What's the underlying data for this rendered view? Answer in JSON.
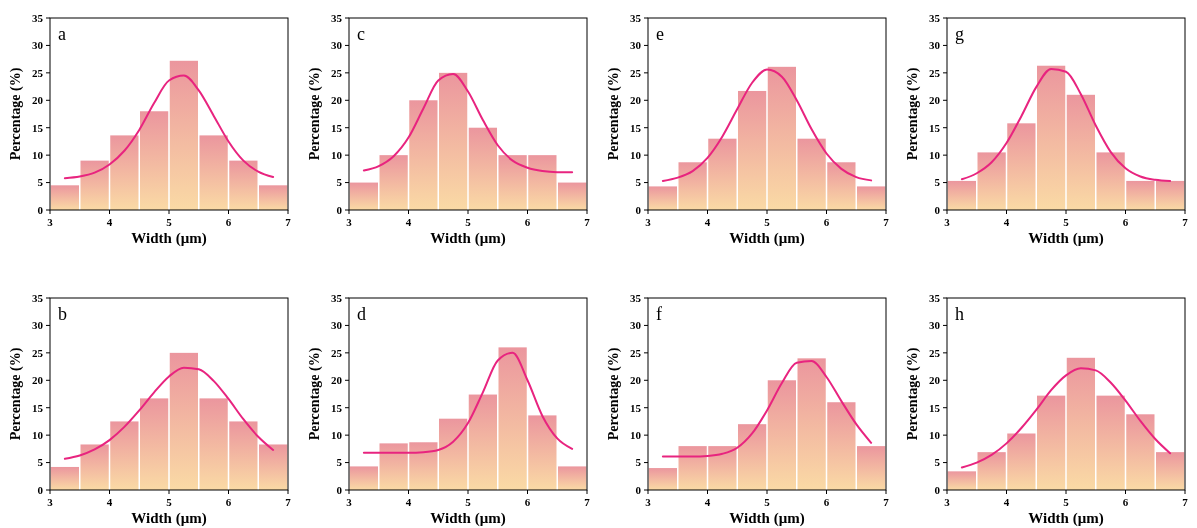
{
  "chart_data": [
    {
      "type": "histogram",
      "title": "a",
      "xlabel": "Width (μm)",
      "ylabel": "Percentage (%)",
      "bins": [
        3,
        3.5,
        4,
        4.5,
        5,
        5.5,
        6,
        6.5,
        7
      ],
      "values": [
        4.5,
        9,
        13.6,
        18,
        27.2,
        13.6,
        9,
        4.5
      ],
      "color": "#eb969e",
      "xlim": [
        3,
        7
      ],
      "xticks": [
        3,
        4,
        5,
        6,
        7
      ],
      "ylim": [
        0,
        35
      ],
      "yticks": [
        0,
        5,
        10,
        15,
        20,
        25,
        30,
        35
      ],
      "series": [
        {
          "type": "line",
          "color": "#e8247f",
          "x": [
            3.25,
            3.5,
            3.75,
            4,
            4.25,
            4.5,
            4.75,
            5,
            5.25,
            5.5,
            5.75,
            6,
            6.25,
            6.5,
            6.75
          ],
          "values": [
            5.8,
            6.1,
            6.8,
            8.3,
            10.8,
            14.6,
            19.5,
            23.6,
            24.5,
            21.8,
            17.2,
            12.5,
            9,
            7,
            6
          ]
        }
      ]
    },
    {
      "type": "histogram",
      "title": "c",
      "xlabel": "Width (μm)",
      "ylabel": "Percentage (%)",
      "bins": [
        3,
        3.5,
        4,
        4.5,
        5,
        5.5,
        6,
        6.5,
        7
      ],
      "values": [
        5,
        10,
        20,
        25,
        15,
        10,
        10,
        5
      ],
      "color": "#eb969e",
      "xlim": [
        3,
        7
      ],
      "xticks": [
        3,
        4,
        5,
        6,
        7
      ],
      "ylim": [
        0,
        35
      ],
      "yticks": [
        0,
        5,
        10,
        15,
        20,
        25,
        30,
        35
      ],
      "series": [
        {
          "type": "line",
          "color": "#e8247f",
          "x": [
            3.25,
            3.5,
            3.75,
            4,
            4.25,
            4.5,
            4.75,
            5,
            5.25,
            5.5,
            5.75,
            6,
            6.25,
            6.5,
            6.75
          ],
          "values": [
            7.2,
            8,
            9.8,
            13.2,
            18.5,
            23.6,
            24.8,
            21.6,
            16.4,
            11.8,
            9,
            7.7,
            7.1,
            6.9,
            6.9
          ]
        }
      ]
    },
    {
      "type": "histogram",
      "title": "e",
      "xlabel": "Width (μm)",
      "ylabel": "Percentage (%)",
      "bins": [
        3,
        3.5,
        4,
        4.5,
        5,
        5.5,
        6,
        6.5,
        7
      ],
      "values": [
        4.3,
        8.7,
        13,
        21.7,
        26.1,
        13,
        8.7,
        4.3
      ],
      "color": "#eb969e",
      "xlim": [
        3,
        7
      ],
      "xticks": [
        3,
        4,
        5,
        6,
        7
      ],
      "ylim": [
        0,
        35
      ],
      "yticks": [
        0,
        5,
        10,
        15,
        20,
        25,
        30,
        35
      ],
      "series": [
        {
          "type": "line",
          "color": "#e8247f",
          "x": [
            3.25,
            3.5,
            3.75,
            4,
            4.25,
            4.5,
            4.75,
            5,
            5.25,
            5.5,
            5.75,
            6,
            6.25,
            6.5,
            6.75
          ],
          "values": [
            5.3,
            5.9,
            7.1,
            9.5,
            13.4,
            18.4,
            23.2,
            25.6,
            24.3,
            20,
            14.7,
            10.3,
            7.5,
            6,
            5.4
          ]
        }
      ]
    },
    {
      "type": "histogram",
      "title": "g",
      "xlabel": "Width (μm)",
      "ylabel": "Percentage (%)",
      "bins": [
        3,
        3.5,
        4,
        4.5,
        5,
        5.5,
        6,
        6.5,
        7
      ],
      "values": [
        5.3,
        10.5,
        15.8,
        26.3,
        21,
        10.5,
        5.3,
        5.3
      ],
      "color": "#eb969e",
      "xlim": [
        3,
        7
      ],
      "xticks": [
        3,
        4,
        5,
        6,
        7
      ],
      "ylim": [
        0,
        35
      ],
      "yticks": [
        0,
        5,
        10,
        15,
        20,
        25,
        30,
        35
      ],
      "series": [
        {
          "type": "line",
          "color": "#e8247f",
          "x": [
            3.25,
            3.5,
            3.75,
            4,
            4.25,
            4.5,
            4.75,
            5,
            5.25,
            5.5,
            5.75,
            6,
            6.25,
            6.5,
            6.75
          ],
          "values": [
            5.6,
            6.7,
            8.7,
            12.2,
            17.1,
            22.4,
            25.7,
            25.2,
            21.1,
            15.4,
            10.6,
            7.6,
            6.1,
            5.5,
            5.3
          ]
        }
      ]
    },
    {
      "type": "histogram",
      "title": "b",
      "xlabel": "Width (μm)",
      "ylabel": "Percentage (%)",
      "bins": [
        3,
        3.5,
        4,
        4.5,
        5,
        5.5,
        6,
        6.5,
        7
      ],
      "values": [
        4.2,
        8.3,
        12.5,
        16.7,
        25,
        16.7,
        12.5,
        8.3
      ],
      "color": "#eb969e",
      "xlim": [
        3,
        7
      ],
      "xticks": [
        3,
        4,
        5,
        6,
        7
      ],
      "ylim": [
        0,
        35
      ],
      "yticks": [
        0,
        5,
        10,
        15,
        20,
        25,
        30,
        35
      ],
      "series": [
        {
          "type": "line",
          "color": "#e8247f",
          "x": [
            3.25,
            3.5,
            3.75,
            4,
            4.25,
            4.5,
            4.75,
            5,
            5.25,
            5.5,
            5.75,
            6,
            6.25,
            6.5,
            6.75
          ],
          "values": [
            5.7,
            6.3,
            7.4,
            9.1,
            11.5,
            14.5,
            17.8,
            20.7,
            22.3,
            22,
            19.9,
            16.6,
            12.9,
            9.7,
            7.3
          ]
        }
      ]
    },
    {
      "type": "histogram",
      "title": "d",
      "xlabel": "Width (μm)",
      "ylabel": "Percentage (%)",
      "bins": [
        3,
        3.5,
        4,
        4.5,
        5,
        5.5,
        6,
        6.5,
        7
      ],
      "values": [
        4.3,
        8.5,
        8.7,
        13,
        17.4,
        26,
        13.6,
        4.3
      ],
      "color": "#eb969e",
      "xlim": [
        3,
        7
      ],
      "xticks": [
        3,
        4,
        5,
        6,
        7
      ],
      "ylim": [
        0,
        35
      ],
      "yticks": [
        0,
        5,
        10,
        15,
        20,
        25,
        30,
        35
      ],
      "series": [
        {
          "type": "line",
          "color": "#e8247f",
          "x": [
            3.25,
            3.5,
            3.75,
            4,
            4.25,
            4.5,
            4.75,
            5,
            5.25,
            5.5,
            5.75,
            6,
            6.25,
            6.5,
            6.75
          ],
          "values": [
            6.8,
            6.8,
            6.8,
            6.8,
            6.9,
            7.3,
            8.8,
            12.2,
            17.8,
            23.6,
            25,
            20,
            13.5,
            9.4,
            7.5
          ]
        }
      ]
    },
    {
      "type": "histogram",
      "title": "f",
      "xlabel": "Width (μm)",
      "ylabel": "Percentage (%)",
      "bins": [
        3,
        3.5,
        4,
        4.5,
        5,
        5.5,
        6,
        6.5,
        7
      ],
      "values": [
        4,
        8,
        8,
        12,
        20,
        24,
        16,
        8
      ],
      "color": "#eb969e",
      "xlim": [
        3,
        7
      ],
      "xticks": [
        3,
        4,
        5,
        6,
        7
      ],
      "ylim": [
        0,
        35
      ],
      "yticks": [
        0,
        5,
        10,
        15,
        20,
        25,
        30,
        35
      ],
      "series": [
        {
          "type": "line",
          "color": "#e8247f",
          "x": [
            3.25,
            3.5,
            3.75,
            4,
            4.25,
            4.5,
            4.75,
            5,
            5.25,
            5.5,
            5.75,
            6,
            6.25,
            6.5,
            6.75
          ],
          "values": [
            6.1,
            6.1,
            6.1,
            6.2,
            6.6,
            7.7,
            10.3,
            14.5,
            19.5,
            23.2,
            23.5,
            20.6,
            16.2,
            12,
            8.6
          ]
        }
      ]
    },
    {
      "type": "histogram",
      "title": "h",
      "xlabel": "Width (μm)",
      "ylabel": "Percentage (%)",
      "bins": [
        3,
        3.5,
        4,
        4.5,
        5,
        5.5,
        6,
        6.5,
        7
      ],
      "values": [
        3.4,
        6.9,
        10.3,
        17.2,
        24.1,
        17.2,
        13.8,
        6.9
      ],
      "color": "#eb969e",
      "xlim": [
        3,
        7
      ],
      "xticks": [
        3,
        4,
        5,
        6,
        7
      ],
      "ylim": [
        0,
        35
      ],
      "yticks": [
        0,
        5,
        10,
        15,
        20,
        25,
        30,
        35
      ],
      "series": [
        {
          "type": "line",
          "color": "#e8247f",
          "x": [
            3.25,
            3.5,
            3.75,
            4,
            4.25,
            4.5,
            4.75,
            5,
            5.25,
            5.5,
            5.75,
            6,
            6.25,
            6.5,
            6.75
          ],
          "values": [
            4.1,
            5,
            6.4,
            8.5,
            11.3,
            14.6,
            18.2,
            20.9,
            22.2,
            21.8,
            19.6,
            16.3,
            12.6,
            9.3,
            6.7
          ]
        }
      ]
    }
  ]
}
